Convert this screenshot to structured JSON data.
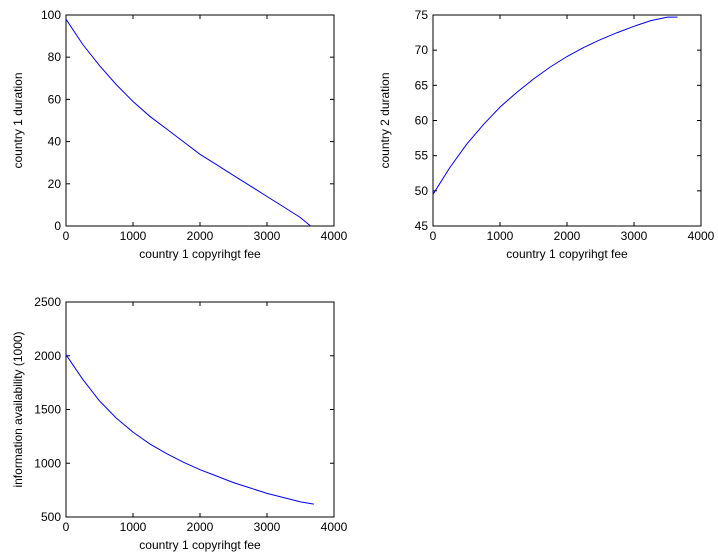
{
  "chart_data": [
    {
      "type": "line",
      "xlabel": "country 1 copyrihgt fee",
      "ylabel": "country 1 duration",
      "xlim": [
        0,
        4000
      ],
      "ylim": [
        0,
        100
      ],
      "xticks": [
        0,
        1000,
        2000,
        3000,
        4000
      ],
      "yticks": [
        0,
        20,
        40,
        60,
        80,
        100
      ],
      "grid": false,
      "line_color": "#0000ff",
      "series": [
        {
          "x": [
            0,
            250,
            500,
            750,
            1000,
            1250,
            1500,
            1750,
            2000,
            2250,
            2500,
            2750,
            3000,
            3250,
            3500,
            3650
          ],
          "y": [
            98,
            86,
            76,
            67,
            59,
            52,
            46,
            40,
            34,
            29,
            24,
            19,
            14,
            9,
            4,
            0
          ]
        }
      ]
    },
    {
      "type": "line",
      "xlabel": "country 1 copyrihgt fee",
      "ylabel": "country 2 duration",
      "xlim": [
        0,
        4000
      ],
      "ylim": [
        45,
        75
      ],
      "xticks": [
        0,
        1000,
        2000,
        3000,
        4000
      ],
      "yticks": [
        45,
        50,
        55,
        60,
        65,
        70,
        75
      ],
      "grid": false,
      "line_color": "#0000ff",
      "series": [
        {
          "x": [
            0,
            250,
            500,
            750,
            1000,
            1250,
            1500,
            1750,
            2000,
            2250,
            2500,
            2750,
            3000,
            3250,
            3500,
            3650
          ],
          "y": [
            49.5,
            53.3,
            56.6,
            59.4,
            61.9,
            64.0,
            65.9,
            67.6,
            69.1,
            70.4,
            71.5,
            72.5,
            73.4,
            74.2,
            74.7,
            74.7
          ]
        }
      ]
    },
    {
      "type": "line",
      "xlabel": "country 1 copyrihgt fee",
      "ylabel": "information availability (1000)",
      "xlim": [
        0,
        4000
      ],
      "ylim": [
        500,
        2500
      ],
      "xticks": [
        0,
        1000,
        2000,
        3000,
        4000
      ],
      "yticks": [
        500,
        1000,
        1500,
        2000,
        2500
      ],
      "grid": false,
      "line_color": "#0000ff",
      "series": [
        {
          "x": [
            0,
            250,
            500,
            750,
            1000,
            1250,
            1500,
            1750,
            2000,
            2250,
            2500,
            2750,
            3000,
            3250,
            3500,
            3700
          ],
          "y": [
            2010,
            1780,
            1580,
            1420,
            1290,
            1180,
            1090,
            1010,
            940,
            880,
            820,
            770,
            720,
            680,
            640,
            620
          ]
        }
      ]
    }
  ]
}
